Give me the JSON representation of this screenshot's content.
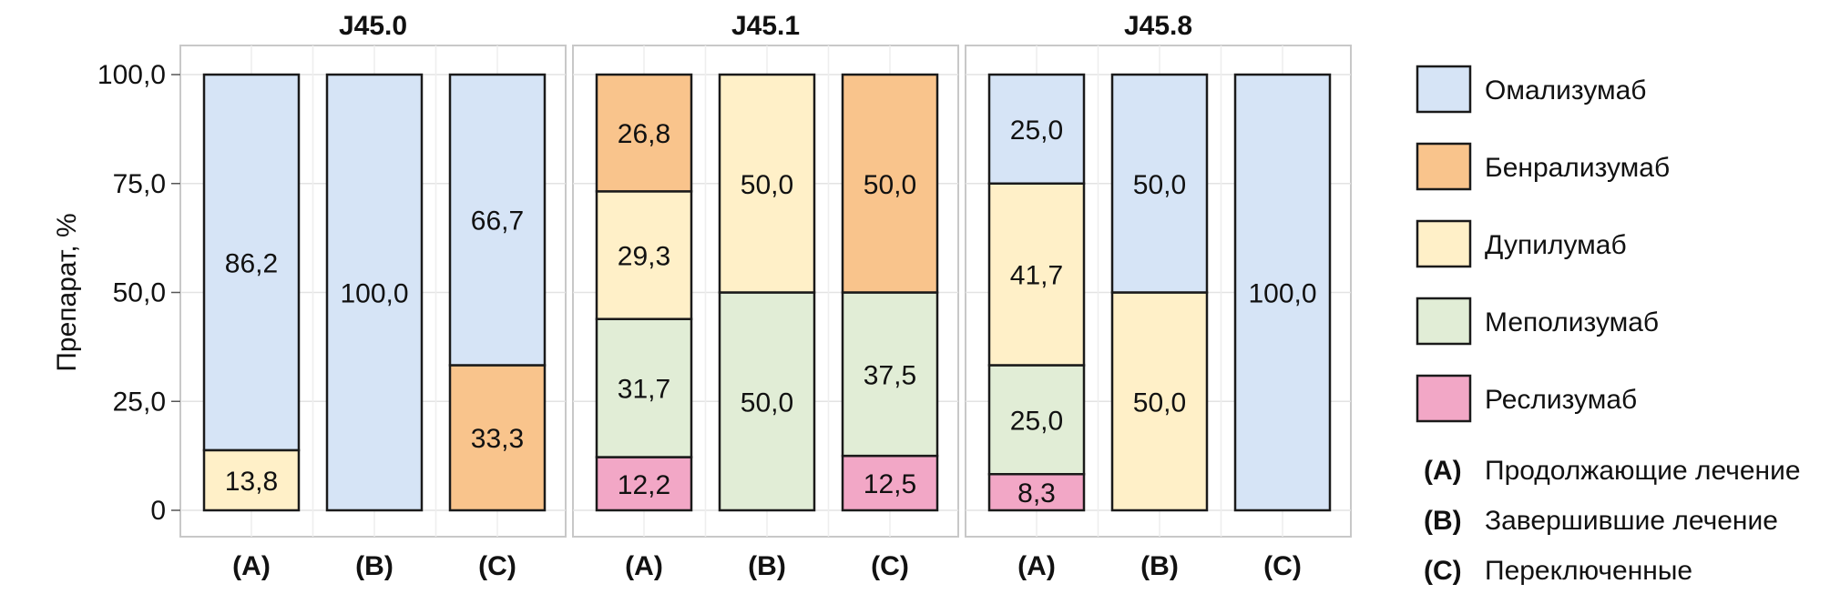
{
  "chart_data": {
    "type": "bar",
    "stacked": true,
    "ylabel": "Препарат, %",
    "ylim": [
      0,
      100
    ],
    "y_ticks": [
      {
        "value": 0,
        "label": "0"
      },
      {
        "value": 25,
        "label": "25,0"
      },
      {
        "value": 50,
        "label": "50,0"
      },
      {
        "value": 75,
        "label": "75,0"
      },
      {
        "value": 100,
        "label": "100,0"
      }
    ],
    "grid": true,
    "legend_position": "right",
    "series": [
      {
        "name": "Омализумаб",
        "color": "#d6e4f6"
      },
      {
        "name": "Бенрализумаб",
        "color": "#f9c48c"
      },
      {
        "name": "Дупилумаб",
        "color": "#fff0c8"
      },
      {
        "name": "Меполизумаб",
        "color": "#e1edd6"
      },
      {
        "name": "Реслизумаб",
        "color": "#f2a7c6"
      }
    ],
    "category_legend": [
      {
        "key": "(A)",
        "text": "Продолжающие лечение"
      },
      {
        "key": "(B)",
        "text": "Завершившие лечение"
      },
      {
        "key": "(C)",
        "text": "Переключенные"
      }
    ],
    "facets": [
      {
        "title": "J45.0",
        "bars": [
          {
            "category": "(A)",
            "segments": [
              {
                "series": "Дупилумаб",
                "value": 13.8,
                "label": "13,8"
              },
              {
                "series": "Омализумаб",
                "value": 86.2,
                "label": "86,2"
              }
            ]
          },
          {
            "category": "(B)",
            "segments": [
              {
                "series": "Омализумаб",
                "value": 100.0,
                "label": "100,0"
              }
            ]
          },
          {
            "category": "(C)",
            "segments": [
              {
                "series": "Бенрализумаб",
                "value": 33.3,
                "label": "33,3"
              },
              {
                "series": "Омализумаб",
                "value": 66.7,
                "label": "66,7"
              }
            ]
          }
        ]
      },
      {
        "title": "J45.1",
        "bars": [
          {
            "category": "(A)",
            "segments": [
              {
                "series": "Реслизумаб",
                "value": 12.2,
                "label": "12,2"
              },
              {
                "series": "Меполизумаб",
                "value": 31.7,
                "label": "31,7"
              },
              {
                "series": "Дупилумаб",
                "value": 29.3,
                "label": "29,3"
              },
              {
                "series": "Бенрализумаб",
                "value": 26.8,
                "label": "26,8"
              }
            ]
          },
          {
            "category": "(B)",
            "segments": [
              {
                "series": "Меполизумаб",
                "value": 50.0,
                "label": "50,0"
              },
              {
                "series": "Дупилумаб",
                "value": 50.0,
                "label": "50,0"
              }
            ]
          },
          {
            "category": "(C)",
            "segments": [
              {
                "series": "Реслизумаб",
                "value": 12.5,
                "label": "12,5"
              },
              {
                "series": "Меполизумаб",
                "value": 37.5,
                "label": "37,5"
              },
              {
                "series": "Бенрализумаб",
                "value": 50.0,
                "label": "50,0"
              }
            ]
          }
        ]
      },
      {
        "title": "J45.8",
        "bars": [
          {
            "category": "(A)",
            "segments": [
              {
                "series": "Реслизумаб",
                "value": 8.3,
                "label": "8,3"
              },
              {
                "series": "Меполизумаб",
                "value": 25.0,
                "label": "25,0"
              },
              {
                "series": "Дупилумаб",
                "value": 41.7,
                "label": "41,7"
              },
              {
                "series": "Омализумаб",
                "value": 25.0,
                "label": "25,0"
              }
            ]
          },
          {
            "category": "(B)",
            "segments": [
              {
                "series": "Дупилумаб",
                "value": 50.0,
                "label": "50,0"
              },
              {
                "series": "Омализумаб",
                "value": 50.0,
                "label": "50,0"
              }
            ]
          },
          {
            "category": "(C)",
            "segments": [
              {
                "series": "Омализумаб",
                "value": 100.0,
                "label": "100,0"
              }
            ]
          }
        ]
      }
    ]
  }
}
